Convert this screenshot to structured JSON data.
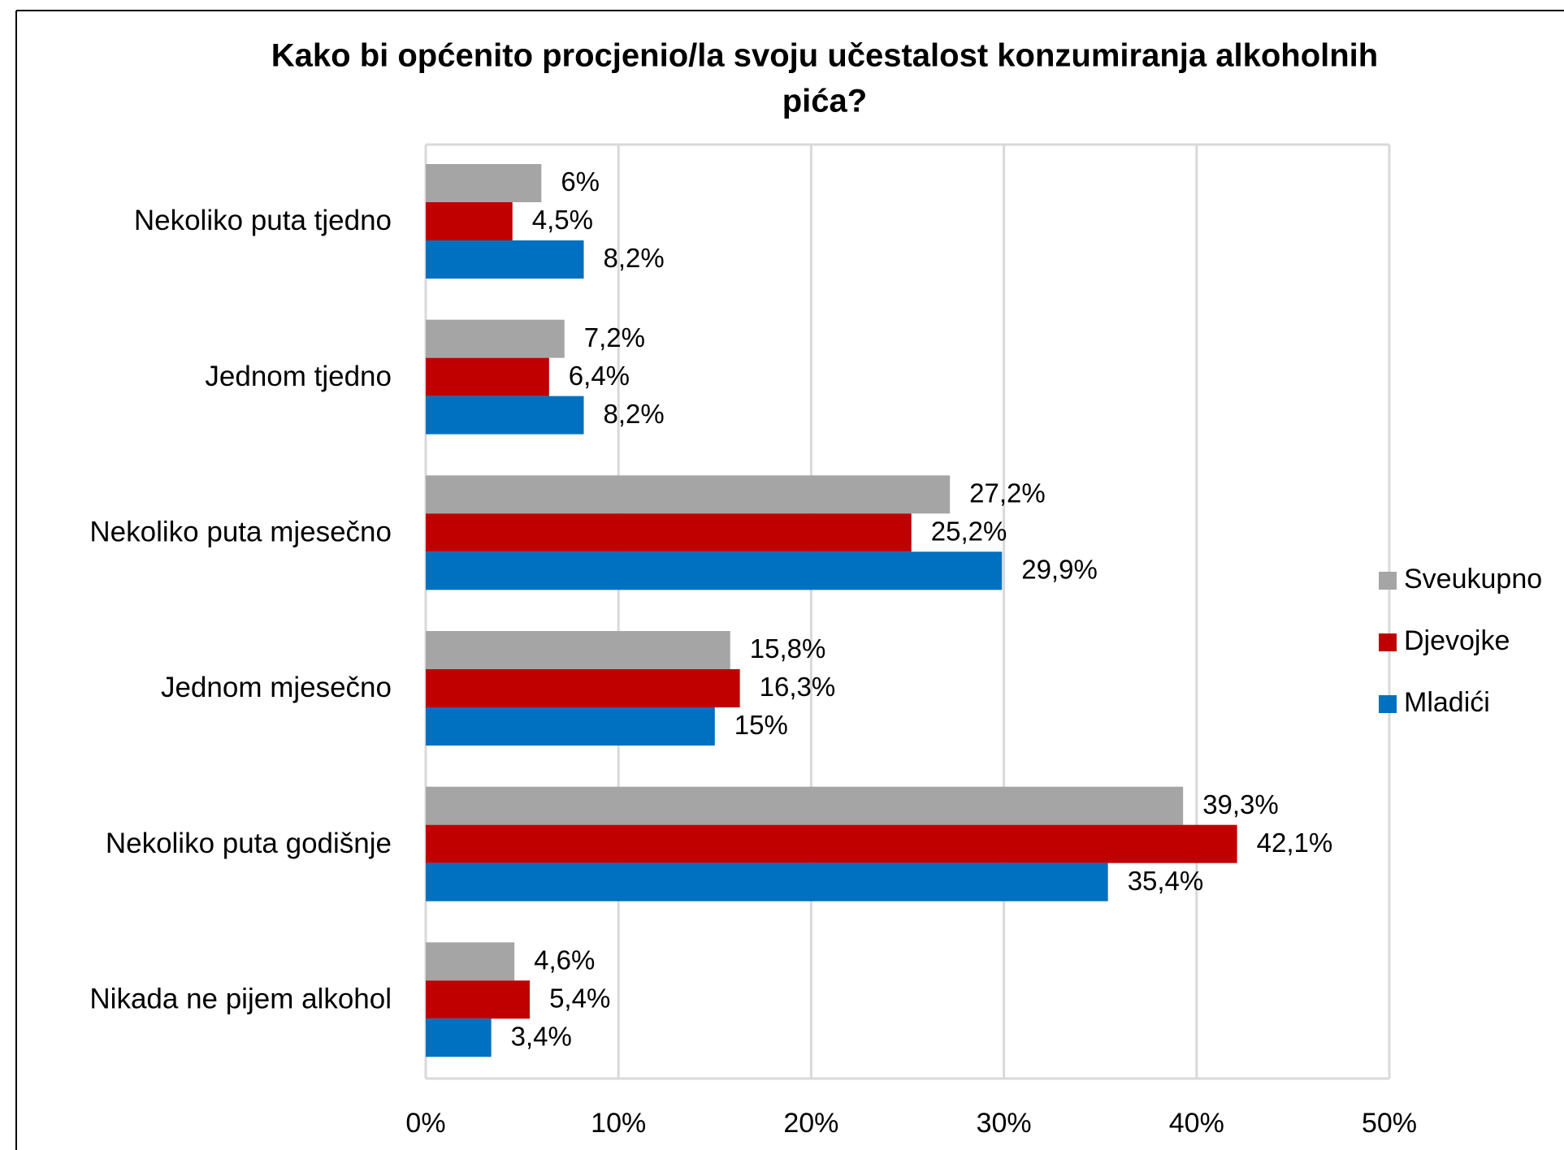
{
  "chart_data": {
    "type": "barh",
    "title": [
      "Kako bi općenito procjenio/la svoju učestalost konzumiranja alkoholnih",
      "pića?"
    ],
    "categories": [
      "Nekoliko puta tjedno",
      "Jednom tjedno",
      "Nekoliko puta mjesečno",
      "Jednom mjesečno",
      "Nekoliko puta godišnje",
      "Nikada ne pijem alkohol"
    ],
    "series": [
      {
        "name": "Sveukupno",
        "color": "#a5a5a5",
        "values": [
          6,
          7.2,
          27.2,
          15.8,
          39.3,
          4.6
        ],
        "value_labels": [
          "6%",
          "7,2%",
          "27,2%",
          "15,8%",
          "39,3%",
          "4,6%"
        ]
      },
      {
        "name": "Djevojke",
        "color": "#c00000",
        "values": [
          4.5,
          6.4,
          25.2,
          16.3,
          42.1,
          5.4
        ],
        "value_labels": [
          "4,5%",
          "6,4%",
          "25,2%",
          "16,3%",
          "42,1%",
          "5,4%"
        ]
      },
      {
        "name": "Mladići",
        "color": "#0070c0",
        "values": [
          8.2,
          8.2,
          29.9,
          15,
          35.4,
          3.4
        ],
        "value_labels": [
          "8,2%",
          "8,2%",
          "29,9%",
          "15%",
          "35,4%",
          "3,4%"
        ]
      }
    ],
    "xlim": [
      0,
      50
    ],
    "xticks": [
      {
        "value": 0,
        "label": "0%"
      },
      {
        "value": 10,
        "label": "10%"
      },
      {
        "value": 20,
        "label": "20%"
      },
      {
        "value": 30,
        "label": "30%"
      },
      {
        "value": 40,
        "label": "40%"
      },
      {
        "value": 50,
        "label": "50%"
      }
    ],
    "grid": true,
    "legend": "right"
  }
}
